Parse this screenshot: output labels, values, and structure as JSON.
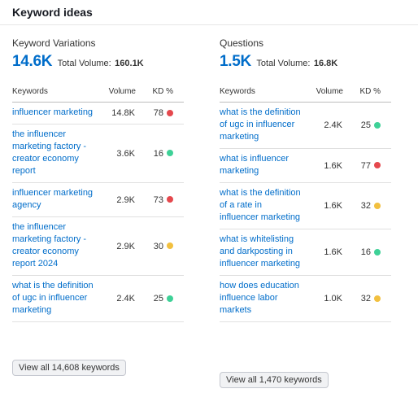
{
  "header": {
    "title": "Keyword ideas"
  },
  "columns_header": {
    "keywords": "Keywords",
    "volume": "Volume",
    "kd": "KD %"
  },
  "colors": {
    "red": "#e5484d",
    "green": "#3ed197",
    "yellow": "#f2c03f",
    "link": "#006dca"
  },
  "variations": {
    "title": "Keyword Variations",
    "count": "14.6K",
    "total_label": "Total Volume:",
    "total_value": "160.1K",
    "rows": [
      {
        "keyword": "influencer marketing",
        "volume": "14.8K",
        "kd": "78",
        "kd_color": "red"
      },
      {
        "keyword": "the influencer marketing factory - creator economy report",
        "volume": "3.6K",
        "kd": "16",
        "kd_color": "green"
      },
      {
        "keyword": "influencer marketing agency",
        "volume": "2.9K",
        "kd": "73",
        "kd_color": "red"
      },
      {
        "keyword": "the influencer marketing factory - creator economy report 2024",
        "volume": "2.9K",
        "kd": "30",
        "kd_color": "yellow"
      },
      {
        "keyword": "what is the definition of ugc in influencer marketing",
        "volume": "2.4K",
        "kd": "25",
        "kd_color": "green"
      }
    ],
    "view_all": "View all 14,608 keywords"
  },
  "questions": {
    "title": "Questions",
    "count": "1.5K",
    "total_label": "Total Volume:",
    "total_value": "16.8K",
    "rows": [
      {
        "keyword": "what is the definition of ugc in influencer marketing",
        "volume": "2.4K",
        "kd": "25",
        "kd_color": "green"
      },
      {
        "keyword": "what is influencer marketing",
        "volume": "1.6K",
        "kd": "77",
        "kd_color": "red"
      },
      {
        "keyword": "what is the definition of a rate in influencer marketing",
        "volume": "1.6K",
        "kd": "32",
        "kd_color": "yellow"
      },
      {
        "keyword": "what is whitelisting and darkposting in influencer marketing",
        "volume": "1.6K",
        "kd": "16",
        "kd_color": "green"
      },
      {
        "keyword": "how does education influence labor markets",
        "volume": "1.0K",
        "kd": "32",
        "kd_color": "yellow"
      }
    ],
    "view_all": "View all 1,470 keywords"
  }
}
